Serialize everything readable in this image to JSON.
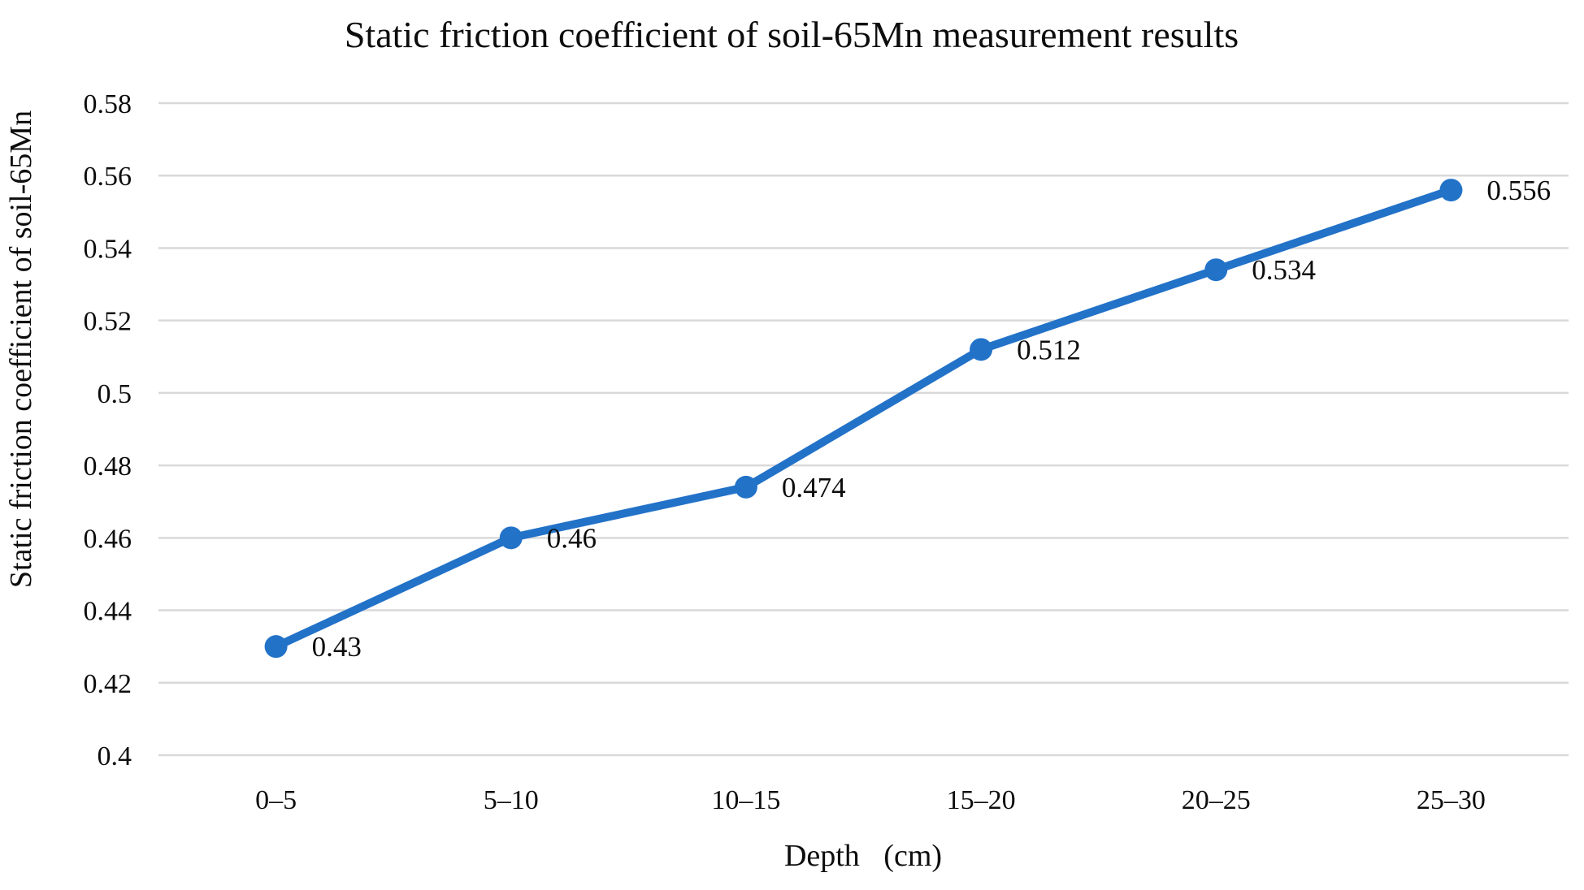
{
  "chart_data": {
    "type": "line",
    "title": "Static friction coefficient of soil-65Mn measurement results",
    "xlabel": "Depth (cm)",
    "ylabel": "Static friction coefficient of soil-65Mn",
    "categories": [
      "0–5",
      "5–10",
      "10–15",
      "15–20",
      "20–25",
      "25–30"
    ],
    "series": [
      {
        "name": "Static friction coefficient of soil-65Mn",
        "values": [
          0.43,
          0.46,
          0.474,
          0.512,
          0.534,
          0.556
        ],
        "data_labels": [
          "0.43",
          "0.46",
          "0.474",
          "0.512",
          "0.534",
          "0.556"
        ]
      }
    ],
    "ylim": [
      0.4,
      0.58
    ],
    "y_ticks": [
      0.4,
      0.42,
      0.44,
      0.46,
      0.48,
      0.5,
      0.52,
      0.54,
      0.56,
      0.58
    ],
    "y_tick_labels": [
      "0.4",
      "0.42",
      "0.44",
      "0.46",
      "0.48",
      "0.5",
      "0.52",
      "0.54",
      "0.56",
      "0.58"
    ],
    "grid": "horizontal",
    "legend": "none",
    "colors": {
      "line": "#2272C8",
      "marker": "#2272C8",
      "gridline": "#D9D9D9",
      "text": "#0d0d0d",
      "background": "#FFFFFF"
    }
  }
}
